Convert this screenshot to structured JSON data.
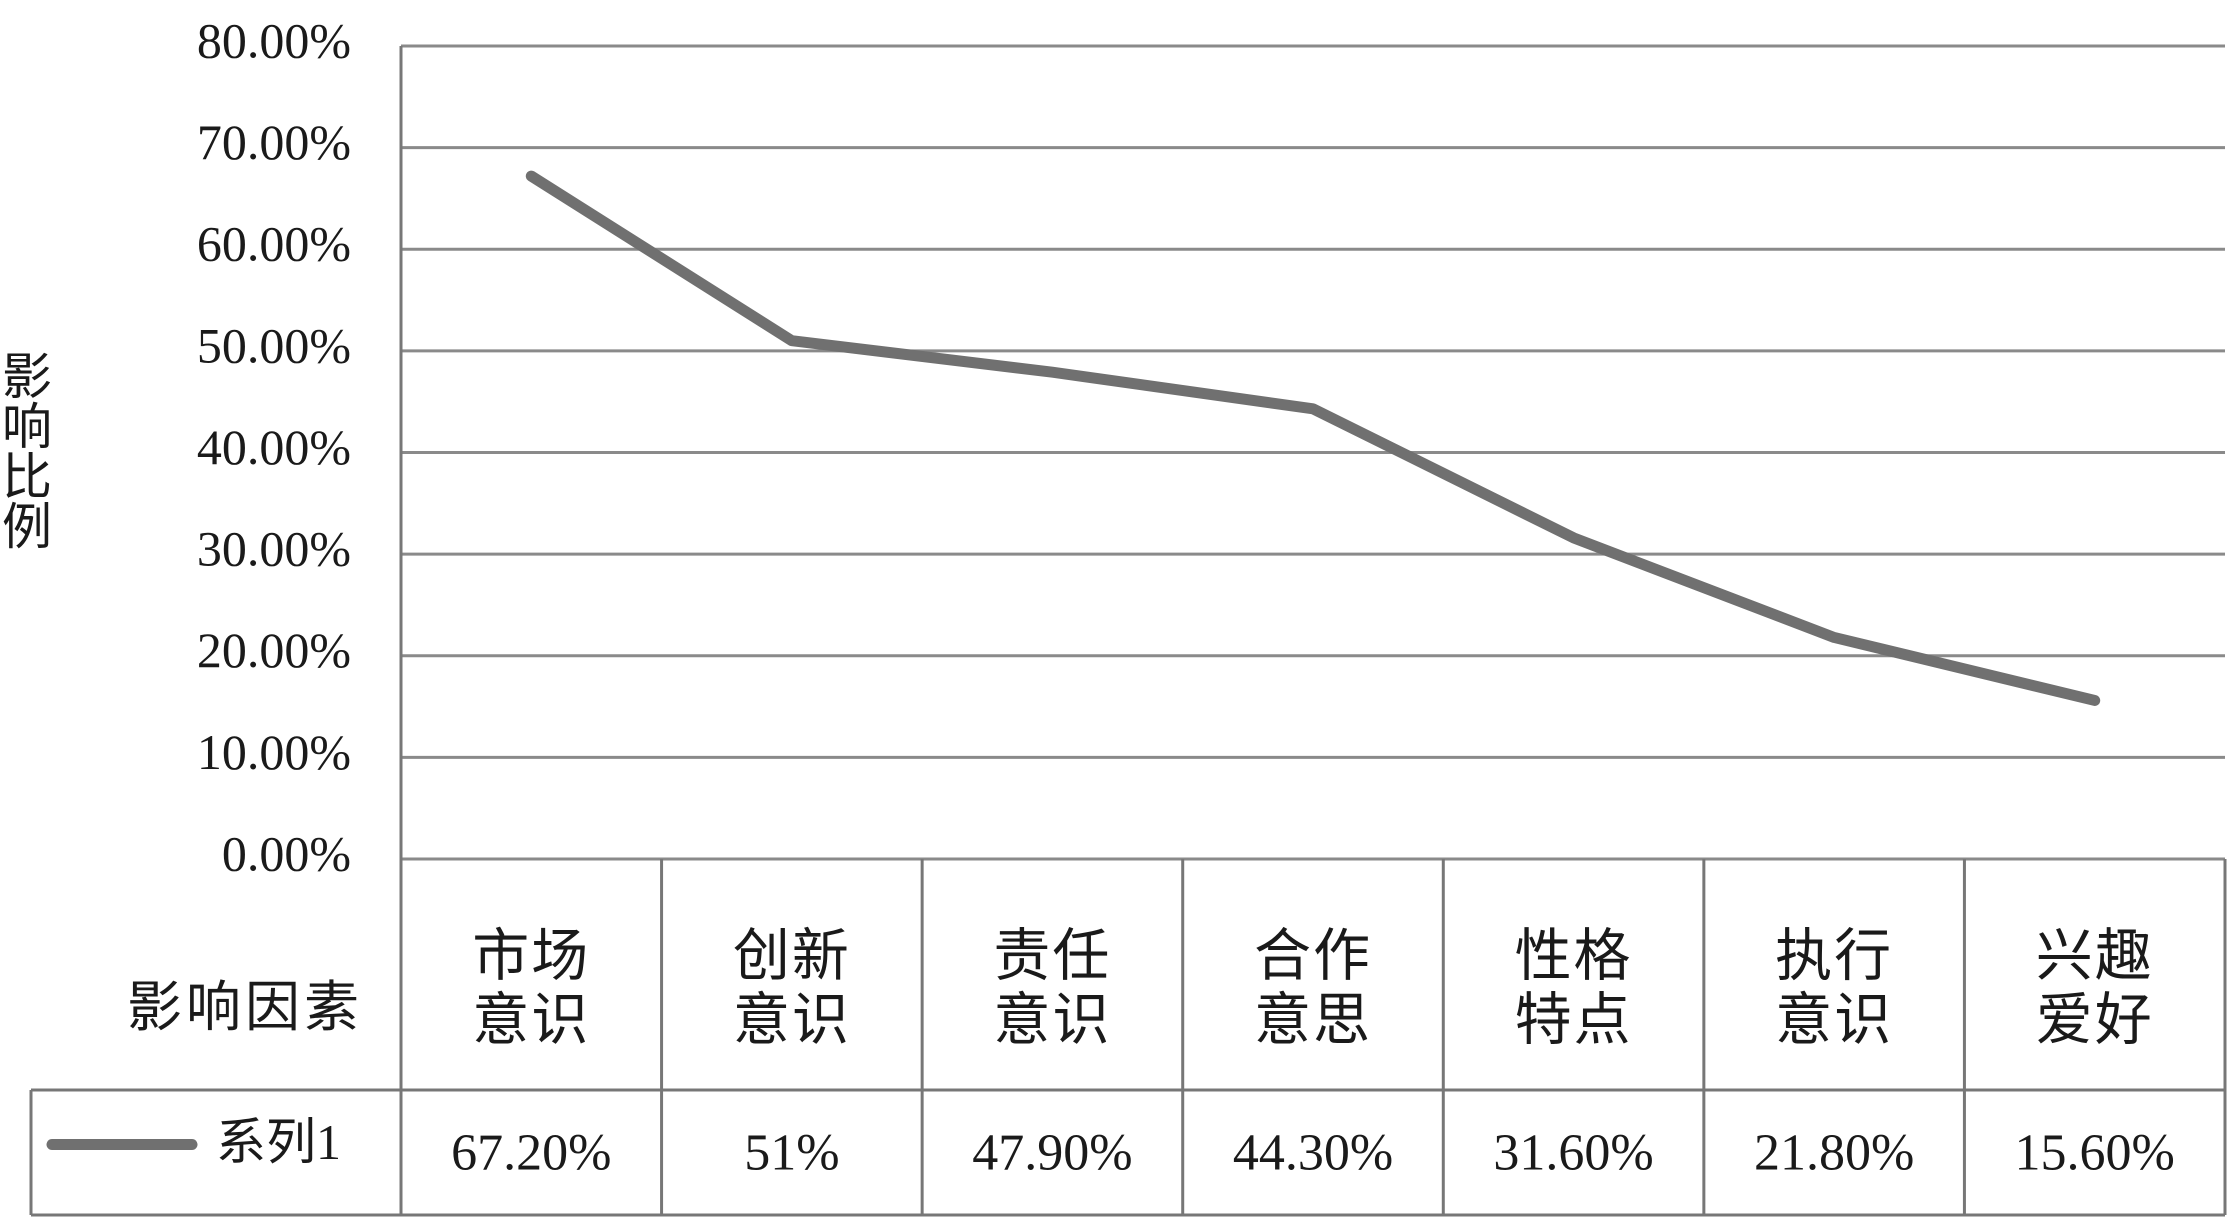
{
  "chart_data": {
    "type": "line",
    "y_label": "影响比例",
    "x_label": "影响因素",
    "categories": [
      "市场意识",
      "创新意识",
      "责任意识",
      "合作意思",
      "性格特点",
      "执行意识",
      "兴趣爱好"
    ],
    "series": [
      {
        "name": "系列1",
        "color": "#707070",
        "values": [
          67.2,
          51,
          47.9,
          44.3,
          31.6,
          21.8,
          15.6
        ],
        "value_labels": [
          "67.20%",
          "51%",
          "47.90%",
          "44.30%",
          "31.60%",
          "21.80%",
          "15.60%"
        ]
      }
    ],
    "ylim": [
      0,
      80
    ],
    "yticks": [
      {
        "value": 0,
        "label": "0.00%"
      },
      {
        "value": 10,
        "label": "10.00%"
      },
      {
        "value": 20,
        "label": "20.00%"
      },
      {
        "value": 30,
        "label": "30.00%"
      },
      {
        "value": 40,
        "label": "40.00%"
      },
      {
        "value": 50,
        "label": "50.00%"
      },
      {
        "value": 60,
        "label": "60.00%"
      },
      {
        "value": 70,
        "label": "70.00%"
      },
      {
        "value": 80,
        "label": "80.00%"
      }
    ],
    "grid": true
  }
}
